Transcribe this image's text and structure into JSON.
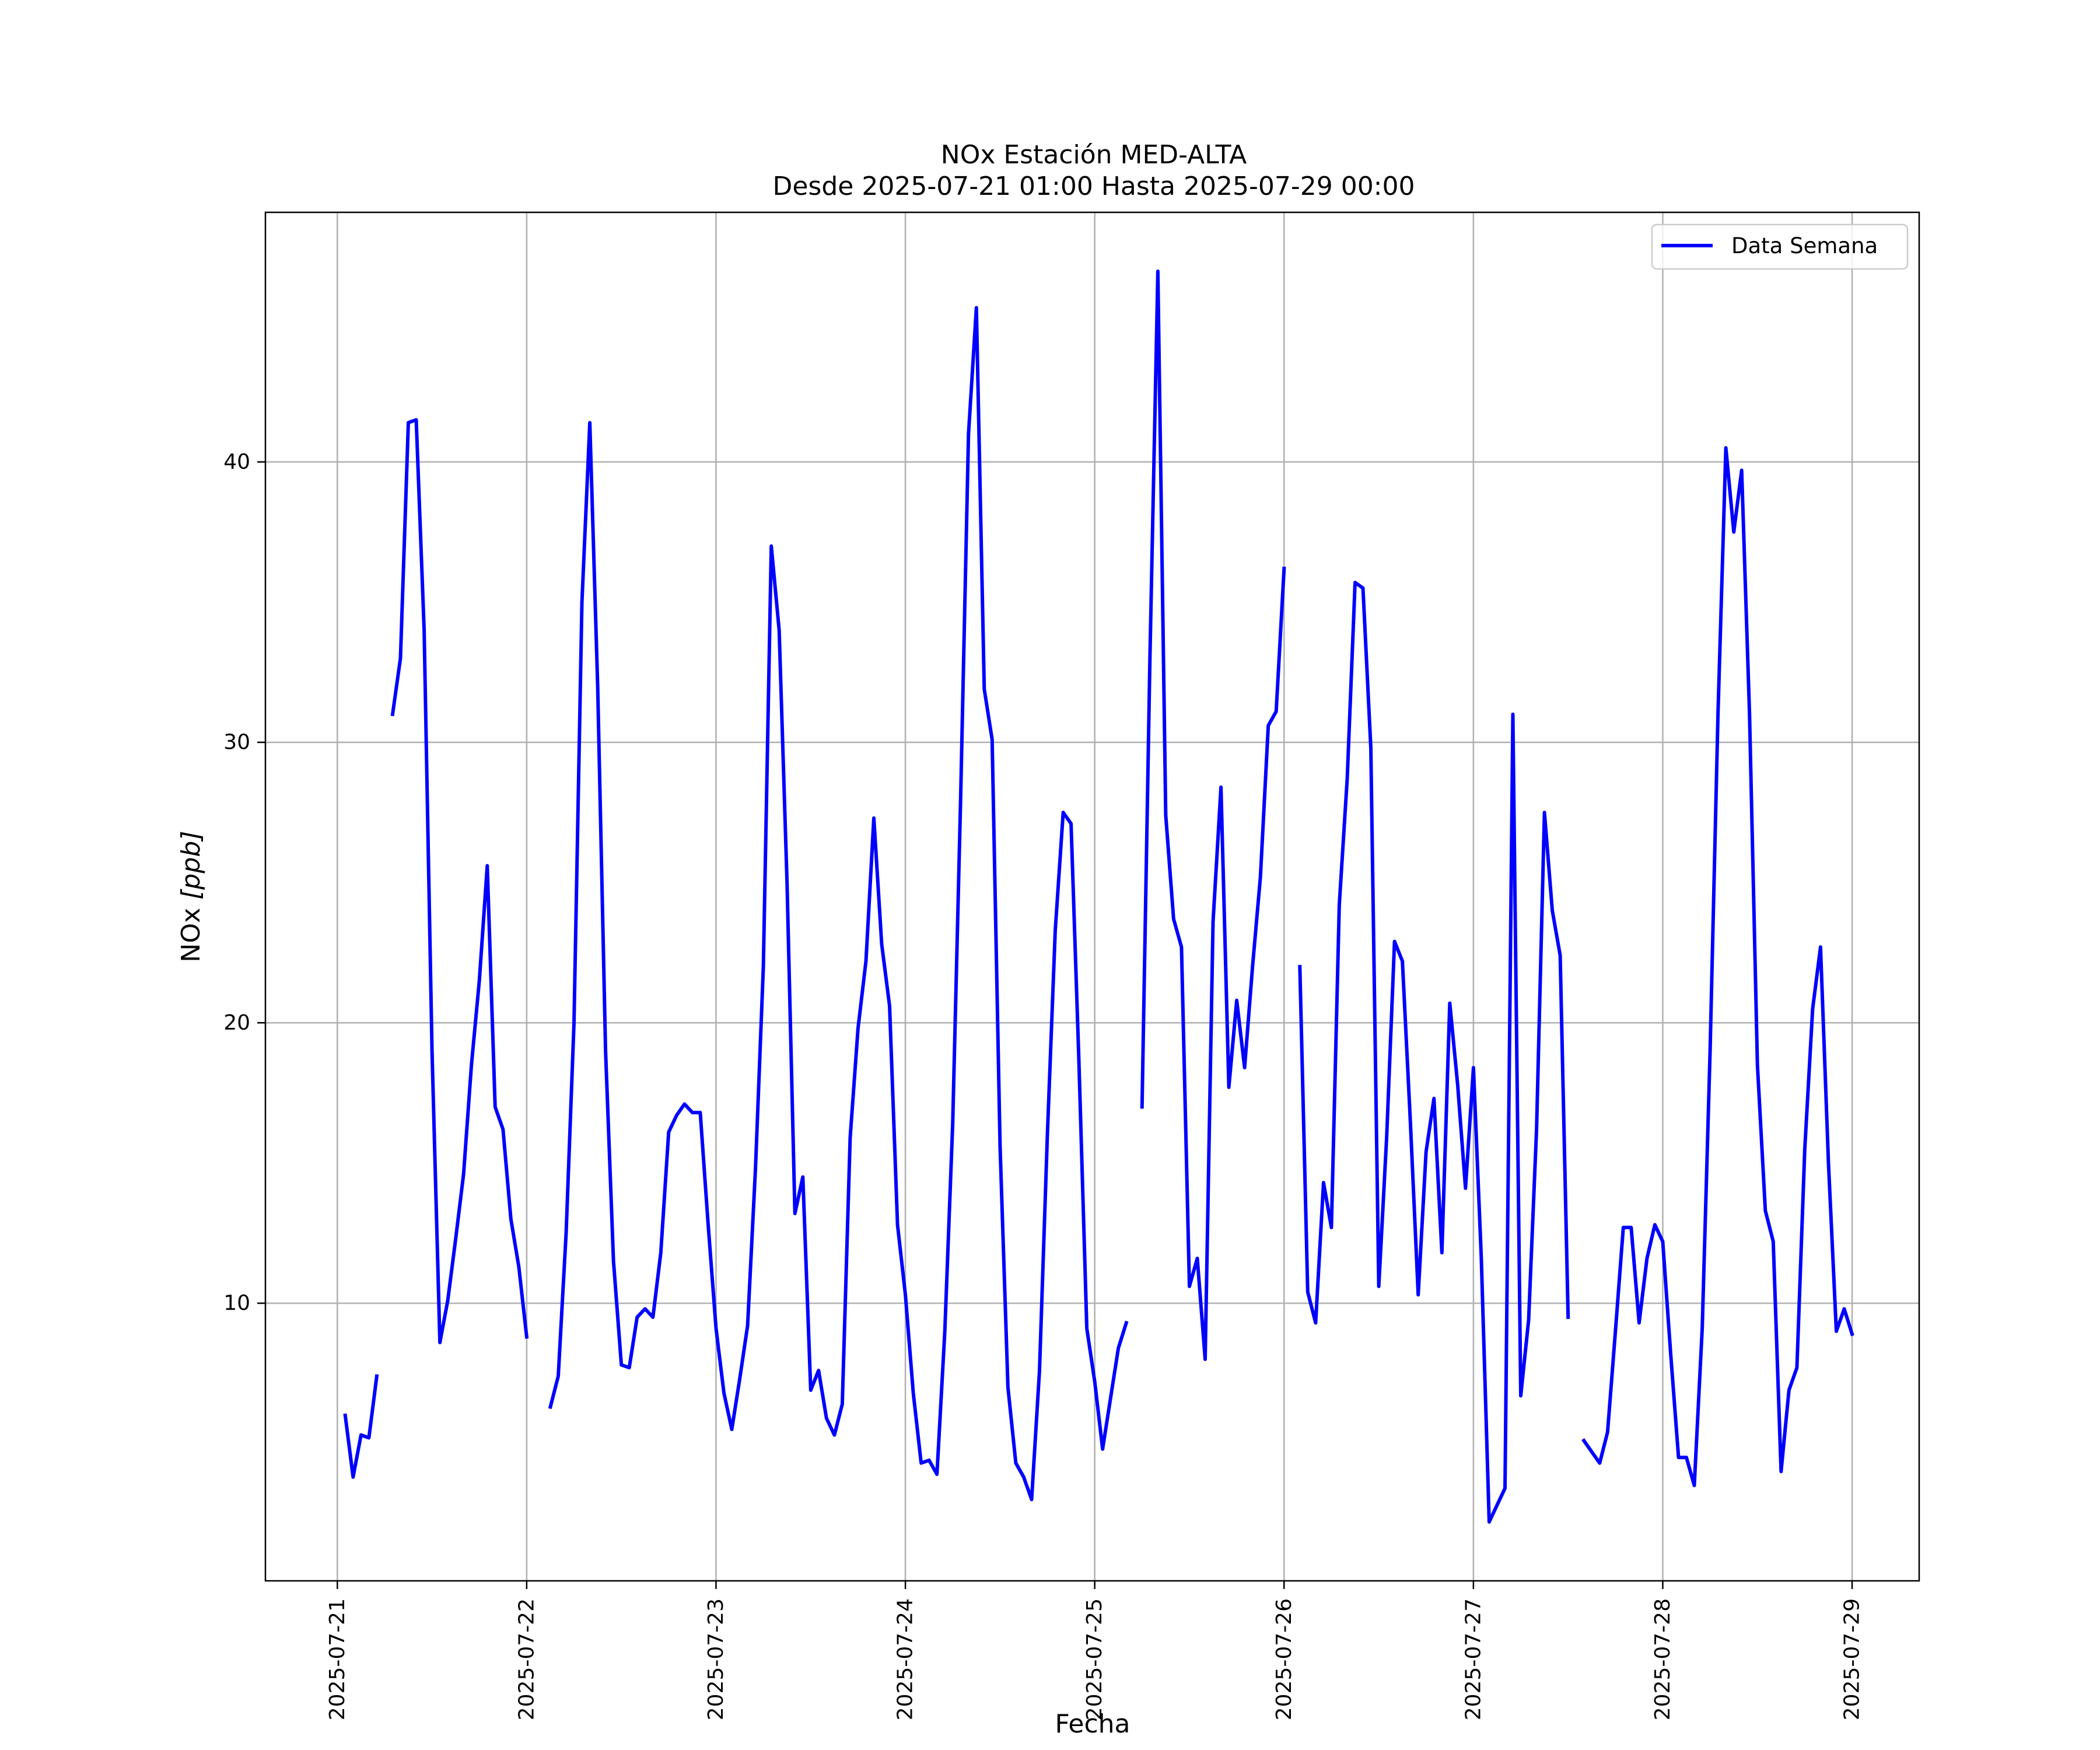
{
  "chart_data": {
    "type": "line",
    "title": "NOx Estación MED-ALTA",
    "subtitle": "Desde 2025-07-21 01:00 Hasta 2025-07-29 00:00",
    "xlabel": "Fecha",
    "ylabel_main": "NOx ",
    "ylabel_unit": "[ppb]",
    "x_tick_labels": [
      "2025-07-21",
      "2025-07-22",
      "2025-07-23",
      "2025-07-24",
      "2025-07-25",
      "2025-07-26",
      "2025-07-27",
      "2025-07-28",
      "2025-07-29"
    ],
    "y_tick_labels": [
      "10",
      "20",
      "30",
      "40"
    ],
    "y_ticks": [
      10,
      20,
      30,
      40
    ],
    "xlim": [
      "2025-07-20 14:53",
      "2025-07-29 08:30"
    ],
    "ylim": [
      0.1,
      48.9
    ],
    "grid": true,
    "legend_position": "top-right",
    "series": [
      {
        "name": "Data Semana",
        "color": "#0000ff",
        "segments": [
          [
            [
              "2025-07-21 01:00",
              6.0
            ],
            [
              "2025-07-21 02:00",
              3.8
            ],
            [
              "2025-07-21 03:00",
              5.3
            ],
            [
              "2025-07-21 04:00",
              5.2
            ],
            [
              "2025-07-21 05:00",
              7.4
            ]
          ],
          [
            [
              "2025-07-21 07:00",
              31.0
            ],
            [
              "2025-07-21 08:00",
              33.0
            ],
            [
              "2025-07-21 09:00",
              41.4
            ],
            [
              "2025-07-21 10:00",
              41.5
            ],
            [
              "2025-07-21 11:00",
              34.0
            ],
            [
              "2025-07-21 12:00",
              19.0
            ],
            [
              "2025-07-21 13:00",
              8.6
            ],
            [
              "2025-07-21 14:00",
              10.1
            ],
            [
              "2025-07-21 15:00",
              12.3
            ],
            [
              "2025-07-21 16:00",
              14.6
            ],
            [
              "2025-07-21 17:00",
              18.5
            ],
            [
              "2025-07-21 18:00",
              21.5
            ],
            [
              "2025-07-21 19:00",
              25.6
            ],
            [
              "2025-07-21 20:00",
              17.0
            ],
            [
              "2025-07-21 21:00",
              16.2
            ],
            [
              "2025-07-21 22:00",
              13.0
            ],
            [
              "2025-07-21 23:00",
              11.3
            ],
            [
              "2025-07-22 00:00",
              8.8
            ]
          ],
          [
            [
              "2025-07-22 03:00",
              6.3
            ],
            [
              "2025-07-22 04:00",
              7.4
            ],
            [
              "2025-07-22 05:00",
              12.5
            ],
            [
              "2025-07-22 06:00",
              20.0
            ],
            [
              "2025-07-22 07:00",
              35.0
            ],
            [
              "2025-07-22 08:00",
              41.4
            ],
            [
              "2025-07-22 09:00",
              32.0
            ],
            [
              "2025-07-22 10:00",
              19.0
            ],
            [
              "2025-07-22 11:00",
              11.5
            ],
            [
              "2025-07-22 12:00",
              7.8
            ],
            [
              "2025-07-22 13:00",
              7.7
            ],
            [
              "2025-07-22 14:00",
              9.5
            ],
            [
              "2025-07-22 15:00",
              9.8
            ],
            [
              "2025-07-22 16:00",
              9.5
            ],
            [
              "2025-07-22 17:00",
              11.8
            ],
            [
              "2025-07-22 18:00",
              16.1
            ],
            [
              "2025-07-22 19:00",
              16.7
            ],
            [
              "2025-07-22 20:00",
              17.1
            ],
            [
              "2025-07-22 21:00",
              16.8
            ],
            [
              "2025-07-22 22:00",
              16.8
            ],
            [
              "2025-07-22 23:00",
              12.8
            ],
            [
              "2025-07-23 00:00",
              9.1
            ],
            [
              "2025-07-23 01:00",
              6.8
            ],
            [
              "2025-07-23 02:00",
              5.5
            ],
            [
              "2025-07-23 03:00",
              7.3
            ],
            [
              "2025-07-23 04:00",
              9.2
            ],
            [
              "2025-07-23 05:00",
              14.8
            ],
            [
              "2025-07-23 06:00",
              22.0
            ],
            [
              "2025-07-23 07:00",
              37.0
            ],
            [
              "2025-07-23 08:00",
              34.0
            ],
            [
              "2025-07-23 09:00",
              25.0
            ],
            [
              "2025-07-23 10:00",
              13.2
            ],
            [
              "2025-07-23 11:00",
              14.5
            ],
            [
              "2025-07-23 12:00",
              6.9
            ],
            [
              "2025-07-23 13:00",
              7.6
            ],
            [
              "2025-07-23 14:00",
              5.9
            ],
            [
              "2025-07-23 15:00",
              5.3
            ],
            [
              "2025-07-23 16:00",
              6.4
            ],
            [
              "2025-07-23 17:00",
              15.9
            ],
            [
              "2025-07-23 18:00",
              19.8
            ],
            [
              "2025-07-23 19:00",
              22.2
            ],
            [
              "2025-07-23 20:00",
              27.3
            ],
            [
              "2025-07-23 21:00",
              22.8
            ],
            [
              "2025-07-23 22:00",
              20.6
            ],
            [
              "2025-07-23 23:00",
              12.8
            ],
            [
              "2025-07-24 00:00",
              10.3
            ],
            [
              "2025-07-24 01:00",
              6.8
            ],
            [
              "2025-07-24 02:00",
              4.3
            ],
            [
              "2025-07-24 03:00",
              4.4
            ],
            [
              "2025-07-24 04:00",
              3.9
            ],
            [
              "2025-07-24 05:00",
              9.0
            ],
            [
              "2025-07-24 06:00",
              16.4
            ],
            [
              "2025-07-24 07:00",
              28.0
            ],
            [
              "2025-07-24 08:00",
              41.0
            ],
            [
              "2025-07-24 09:00",
              45.5
            ],
            [
              "2025-07-24 10:00",
              31.9
            ],
            [
              "2025-07-24 11:00",
              30.1
            ],
            [
              "2025-07-24 12:00",
              15.6
            ],
            [
              "2025-07-24 13:00",
              7.0
            ],
            [
              "2025-07-24 14:00",
              4.3
            ],
            [
              "2025-07-24 15:00",
              3.8
            ],
            [
              "2025-07-24 16:00",
              3.0
            ],
            [
              "2025-07-24 17:00",
              7.6
            ],
            [
              "2025-07-24 18:00",
              16.0
            ],
            [
              "2025-07-24 19:00",
              23.3
            ],
            [
              "2025-07-24 20:00",
              27.5
            ],
            [
              "2025-07-24 21:00",
              27.1
            ],
            [
              "2025-07-24 22:00",
              18.6
            ],
            [
              "2025-07-24 23:00",
              9.1
            ],
            [
              "2025-07-25 00:00",
              7.2
            ],
            [
              "2025-07-25 01:00",
              4.8
            ],
            [
              "2025-07-25 02:00",
              6.6
            ],
            [
              "2025-07-25 03:00",
              8.4
            ],
            [
              "2025-07-25 04:00",
              9.3
            ]
          ],
          [
            [
              "2025-07-25 06:00",
              17.0
            ],
            [
              "2025-07-25 07:00",
              33.0
            ],
            [
              "2025-07-25 08:00",
              46.8
            ],
            [
              "2025-07-25 09:00",
              27.4
            ],
            [
              "2025-07-25 10:00",
              23.7
            ],
            [
              "2025-07-25 11:00",
              22.7
            ],
            [
              "2025-07-25 12:00",
              10.6
            ],
            [
              "2025-07-25 13:00",
              11.6
            ],
            [
              "2025-07-25 14:00",
              8.0
            ],
            [
              "2025-07-25 15:00",
              23.6
            ],
            [
              "2025-07-25 16:00",
              28.4
            ],
            [
              "2025-07-25 17:00",
              17.7
            ],
            [
              "2025-07-25 18:00",
              20.8
            ],
            [
              "2025-07-25 19:00",
              18.4
            ],
            [
              "2025-07-25 20:00",
              22.0
            ],
            [
              "2025-07-25 21:00",
              25.2
            ],
            [
              "2025-07-25 22:00",
              30.6
            ],
            [
              "2025-07-25 23:00",
              31.1
            ],
            [
              "2025-07-26 00:00",
              36.2
            ]
          ],
          [
            [
              "2025-07-26 02:00",
              22.0
            ],
            [
              "2025-07-26 03:00",
              10.4
            ],
            [
              "2025-07-26 04:00",
              9.3
            ],
            [
              "2025-07-26 05:00",
              14.3
            ],
            [
              "2025-07-26 06:00",
              12.7
            ],
            [
              "2025-07-26 07:00",
              24.2
            ],
            [
              "2025-07-26 08:00",
              28.7
            ],
            [
              "2025-07-26 09:00",
              35.7
            ],
            [
              "2025-07-26 10:00",
              35.5
            ],
            [
              "2025-07-26 11:00",
              29.8
            ],
            [
              "2025-07-26 12:00",
              10.6
            ],
            [
              "2025-07-26 13:00",
              15.9
            ],
            [
              "2025-07-26 14:00",
              22.9
            ],
            [
              "2025-07-26 15:00",
              22.2
            ],
            [
              "2025-07-26 16:00",
              16.5
            ],
            [
              "2025-07-26 17:00",
              10.3
            ],
            [
              "2025-07-26 18:00",
              15.4
            ],
            [
              "2025-07-26 19:00",
              17.3
            ],
            [
              "2025-07-26 20:00",
              11.8
            ],
            [
              "2025-07-26 21:00",
              20.7
            ],
            [
              "2025-07-26 22:00",
              17.8
            ],
            [
              "2025-07-26 23:00",
              14.1
            ],
            [
              "2025-07-27 00:00",
              18.4
            ],
            [
              "2025-07-27 01:00",
              11.6
            ],
            [
              "2025-07-27 02:00",
              2.2
            ],
            [
              "2025-07-27 03:00",
              2.8
            ],
            [
              "2025-07-27 04:00",
              3.4
            ],
            [
              "2025-07-27 05:00",
              31.0
            ],
            [
              "2025-07-27 06:00",
              6.7
            ],
            [
              "2025-07-27 07:00",
              9.4
            ],
            [
              "2025-07-27 08:00",
              16.2
            ],
            [
              "2025-07-27 09:00",
              27.5
            ],
            [
              "2025-07-27 10:00",
              24.0
            ],
            [
              "2025-07-27 11:00",
              22.4
            ],
            [
              "2025-07-27 12:00",
              9.5
            ]
          ],
          [
            [
              "2025-07-27 14:00",
              5.1
            ],
            [
              "2025-07-27 15:00",
              4.7
            ],
            [
              "2025-07-27 16:00",
              4.3
            ],
            [
              "2025-07-27 17:00",
              5.4
            ],
            [
              "2025-07-27 18:00",
              9.0
            ],
            [
              "2025-07-27 19:00",
              12.7
            ],
            [
              "2025-07-27 20:00",
              12.7
            ],
            [
              "2025-07-27 21:00",
              9.3
            ],
            [
              "2025-07-27 22:00",
              11.6
            ],
            [
              "2025-07-27 23:00",
              12.8
            ],
            [
              "2025-07-28 00:00",
              12.2
            ],
            [
              "2025-07-28 01:00",
              8.2
            ],
            [
              "2025-07-28 02:00",
              4.5
            ],
            [
              "2025-07-28 03:00",
              4.5
            ],
            [
              "2025-07-28 04:00",
              3.5
            ],
            [
              "2025-07-28 05:00",
              9.1
            ],
            [
              "2025-07-28 06:00",
              19.0
            ],
            [
              "2025-07-28 07:00",
              31.0
            ],
            [
              "2025-07-28 08:00",
              40.5
            ],
            [
              "2025-07-28 09:00",
              37.5
            ],
            [
              "2025-07-28 10:00",
              39.7
            ],
            [
              "2025-07-28 11:00",
              31.0
            ],
            [
              "2025-07-28 12:00",
              18.5
            ],
            [
              "2025-07-28 13:00",
              13.3
            ],
            [
              "2025-07-28 14:00",
              12.2
            ],
            [
              "2025-07-28 15:00",
              4.0
            ],
            [
              "2025-07-28 16:00",
              6.9
            ],
            [
              "2025-07-28 17:00",
              7.7
            ],
            [
              "2025-07-28 18:00",
              15.5
            ],
            [
              "2025-07-28 19:00",
              20.5
            ],
            [
              "2025-07-28 20:00",
              22.7
            ],
            [
              "2025-07-28 21:00",
              15.0
            ],
            [
              "2025-07-28 22:00",
              9.0
            ],
            [
              "2025-07-28 23:00",
              9.8
            ],
            [
              "2025-07-29 00:00",
              8.9
            ]
          ]
        ]
      }
    ]
  }
}
